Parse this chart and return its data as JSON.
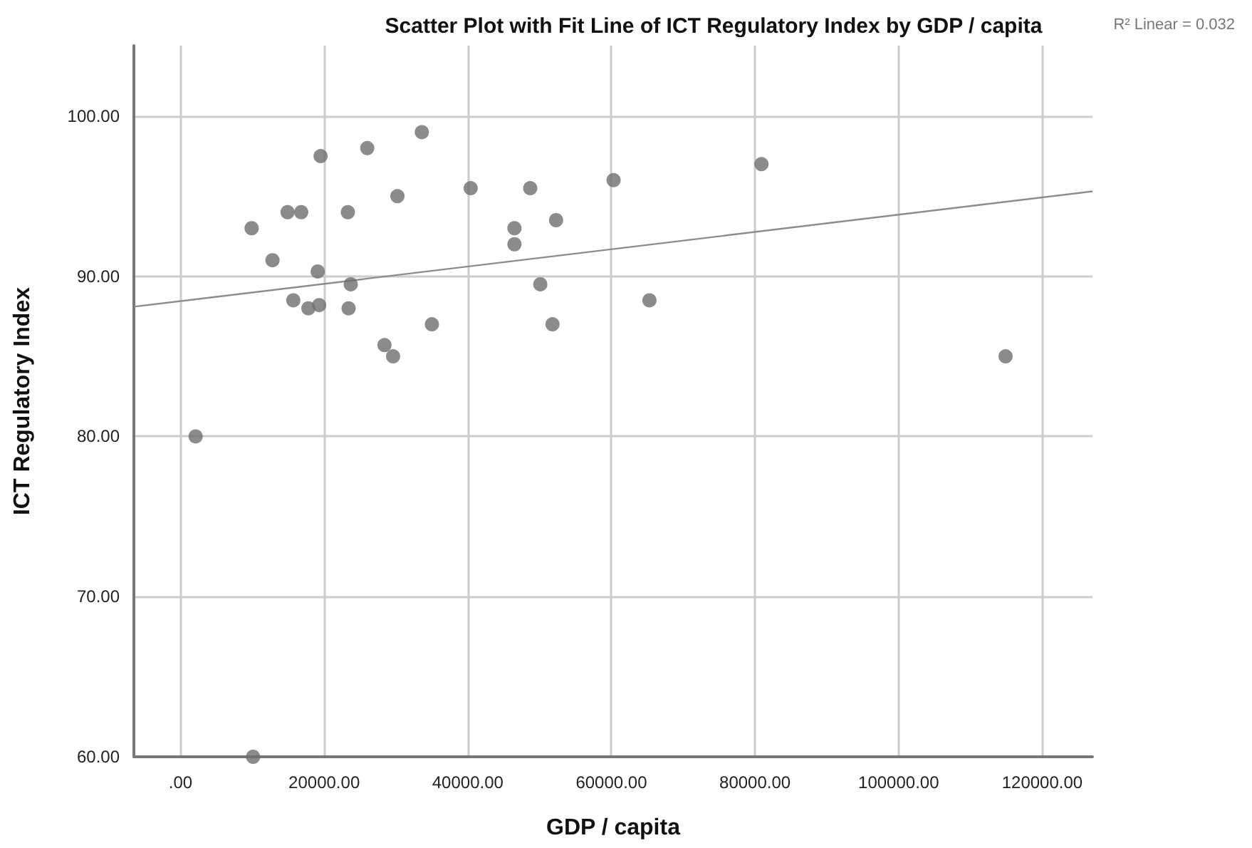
{
  "chart_data": {
    "type": "scatter",
    "title": "Scatter Plot with Fit Line of ICT Regulatory Index by GDP / capita",
    "xlabel": "GDP / capita",
    "ylabel": "ICT Regulatory Index",
    "annotations": [
      "R² Linear = 0.032"
    ],
    "xlim": [
      -6500,
      127000
    ],
    "xticks": [
      {
        "value": 0,
        "label": ".00"
      },
      {
        "value": 20000,
        "label": "20000.00"
      },
      {
        "value": 40000,
        "label": "40000.00"
      },
      {
        "value": 60000,
        "label": "60000.00"
      },
      {
        "value": 80000,
        "label": "80000.00"
      },
      {
        "value": 100000,
        "label": "100000.00"
      },
      {
        "value": 120000,
        "label": "120000.00"
      }
    ],
    "ylim": [
      60,
      104.4
    ],
    "yticks": [
      {
        "value": 60,
        "label": "60.00"
      },
      {
        "value": 70,
        "label": "70.00"
      },
      {
        "value": 80,
        "label": "80.00"
      },
      {
        "value": 90,
        "label": "90.00"
      },
      {
        "value": 100,
        "label": "100.00"
      }
    ],
    "grid": true,
    "series": [
      {
        "marker": "circle",
        "color": "#6e6e6e",
        "x": [
          2100,
          9900,
          12800,
          14900,
          16800,
          15700,
          17800,
          19300,
          19100,
          19500,
          23300,
          23700,
          23400,
          26000,
          28400,
          29600,
          30200,
          33600,
          35000,
          40400,
          48700,
          46500,
          46500,
          52300,
          50100,
          51800,
          60300,
          65300,
          80900,
          114900,
          10100
        ],
        "values": [
          80.0,
          93.0,
          91.0,
          94.0,
          94.0,
          88.5,
          88.0,
          88.2,
          90.3,
          97.5,
          94.0,
          89.5,
          88.0,
          98.0,
          85.7,
          85.0,
          95.0,
          99.0,
          87.0,
          95.5,
          95.5,
          93.0,
          92.0,
          93.5,
          89.5,
          87.0,
          96.0,
          88.5,
          97.0,
          85.0,
          60.0
        ]
      },
      {
        "type": "line",
        "marker": "none",
        "line_style": "solid",
        "color": "#8c8c8c",
        "x": [
          -6500,
          127000
        ],
        "values": [
          88.1,
          95.3
        ]
      }
    ]
  }
}
